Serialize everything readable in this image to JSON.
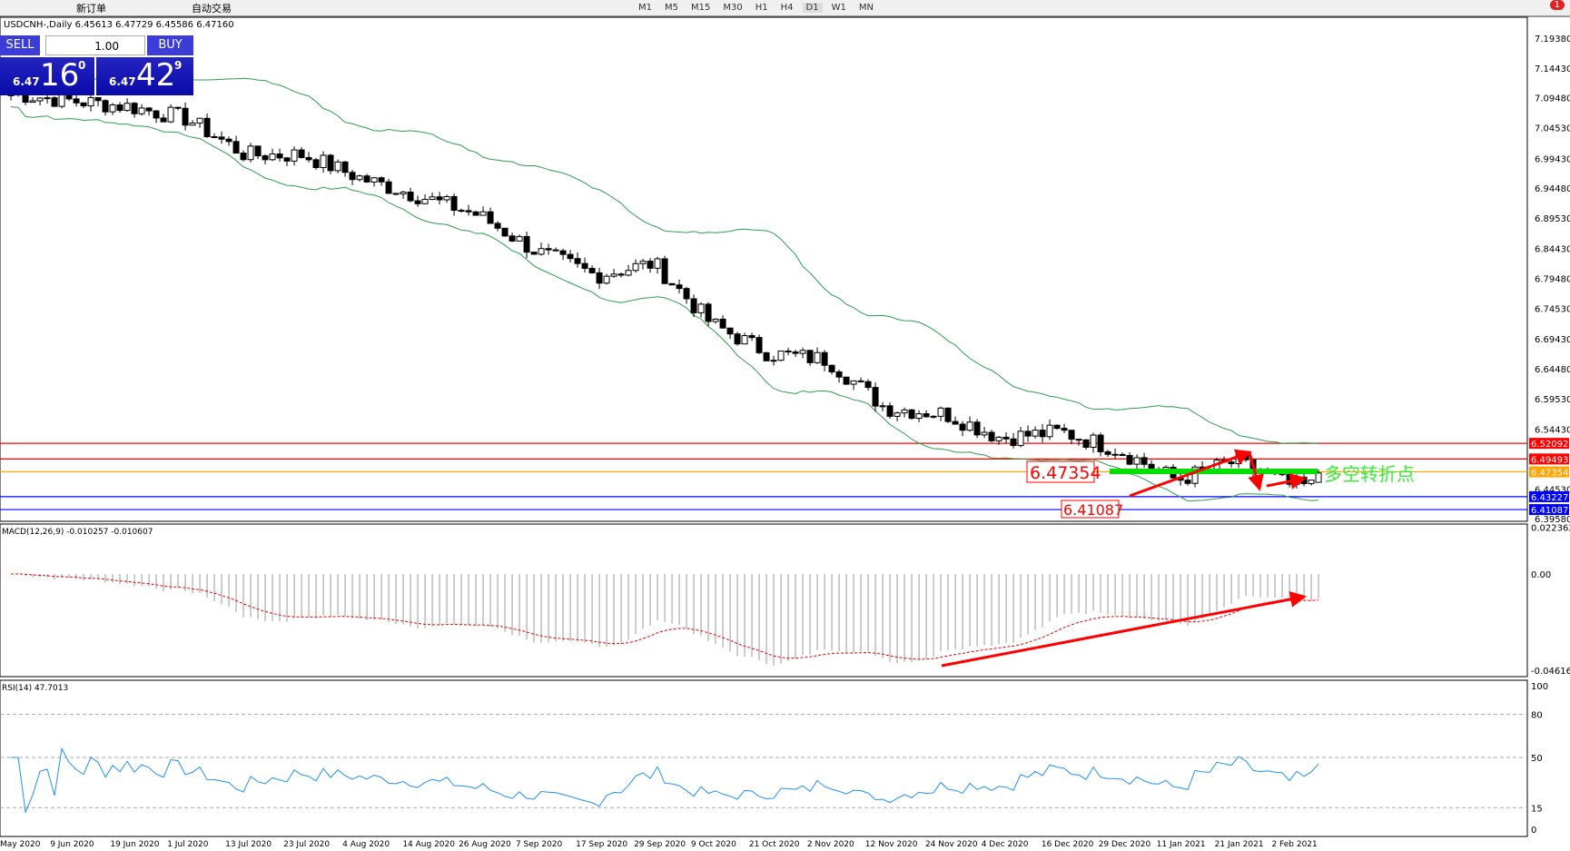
{
  "toolbar": {
    "new_order": "新订单",
    "auto_trading": "自动交易",
    "timeframes": [
      "M1",
      "M5",
      "M15",
      "M30",
      "H1",
      "H4",
      "D1",
      "W1",
      "MN"
    ],
    "active_timeframe": "D1",
    "notification_count": "1"
  },
  "chart_title": "USDCNH-,Daily  6.45613 6.47729 6.45586 6.47160",
  "trade_panel": {
    "sell_label": "SELL",
    "buy_label": "BUY",
    "lot": "1.00",
    "sell_small": "6.47",
    "sell_big": "16",
    "sell_pip": "0",
    "buy_small": "6.47",
    "buy_big": "42",
    "buy_pip": "9"
  },
  "price_axis": [
    "7.19380",
    "7.14430",
    "7.09480",
    "7.04530",
    "6.99430",
    "6.94480",
    "6.89530",
    "6.84430",
    "6.79480",
    "6.74530",
    "6.69430",
    "6.64480",
    "6.59530",
    "6.54430",
    "6.44530",
    "6.39580"
  ],
  "levels": [
    {
      "value": "6.52092",
      "color": "#ff0000"
    },
    {
      "value": "6.49493",
      "color": "#ff0000"
    },
    {
      "value": "6.47354",
      "color": "#ffa500"
    },
    {
      "value": "6.43227",
      "color": "#0000ff"
    },
    {
      "value": "6.41087",
      "color": "#0000ff"
    }
  ],
  "annotations": {
    "label1": "6.47354",
    "label2": "6.41087",
    "pivot_text": "多空转折点"
  },
  "macd": {
    "title": "MACD(12,26,9) -0.010257 -0.010607",
    "axis": [
      "0.022362",
      "0.00",
      "-0.046165"
    ]
  },
  "rsi": {
    "title": "RSI(14) 47.7013",
    "axis": [
      "100",
      "80",
      "50",
      "15",
      "0"
    ]
  },
  "chart_data": {
    "type": "candlestick",
    "symbol": "USDCNH-",
    "timeframe": "Daily",
    "dates": [
      "May 2020",
      "9 Jun 2020",
      "19 Jun 2020",
      "1 Jul 2020",
      "13 Jul 2020",
      "23 Jul 2020",
      "4 Aug 2020",
      "14 Aug 2020",
      "26 Aug 2020",
      "7 Sep 2020",
      "17 Sep 2020",
      "29 Sep 2020",
      "9 Oct 2020",
      "21 Oct 2020",
      "2 Nov 2020",
      "12 Nov 2020",
      "24 Nov 2020",
      "4 Dec 2020",
      "16 Dec 2020",
      "29 Dec 2020",
      "11 Jan 2021",
      "21 Jan 2021",
      "2 Feb 2021"
    ],
    "approx_close": [
      7.1,
      7.09,
      7.08,
      7.06,
      7.0,
      7.0,
      6.96,
      6.93,
      6.9,
      6.84,
      6.8,
      6.82,
      6.72,
      6.67,
      6.66,
      6.58,
      6.57,
      6.53,
      6.54,
      6.51,
      6.46,
      6.49,
      6.45
    ],
    "last_ohlc": [
      6.45613,
      6.47729,
      6.45586,
      6.4716
    ],
    "ylim": [
      6.3958,
      7.1938
    ],
    "indicators": [
      "Bollinger Bands",
      "MACD(12,26,9)",
      "RSI(14)"
    ]
  }
}
